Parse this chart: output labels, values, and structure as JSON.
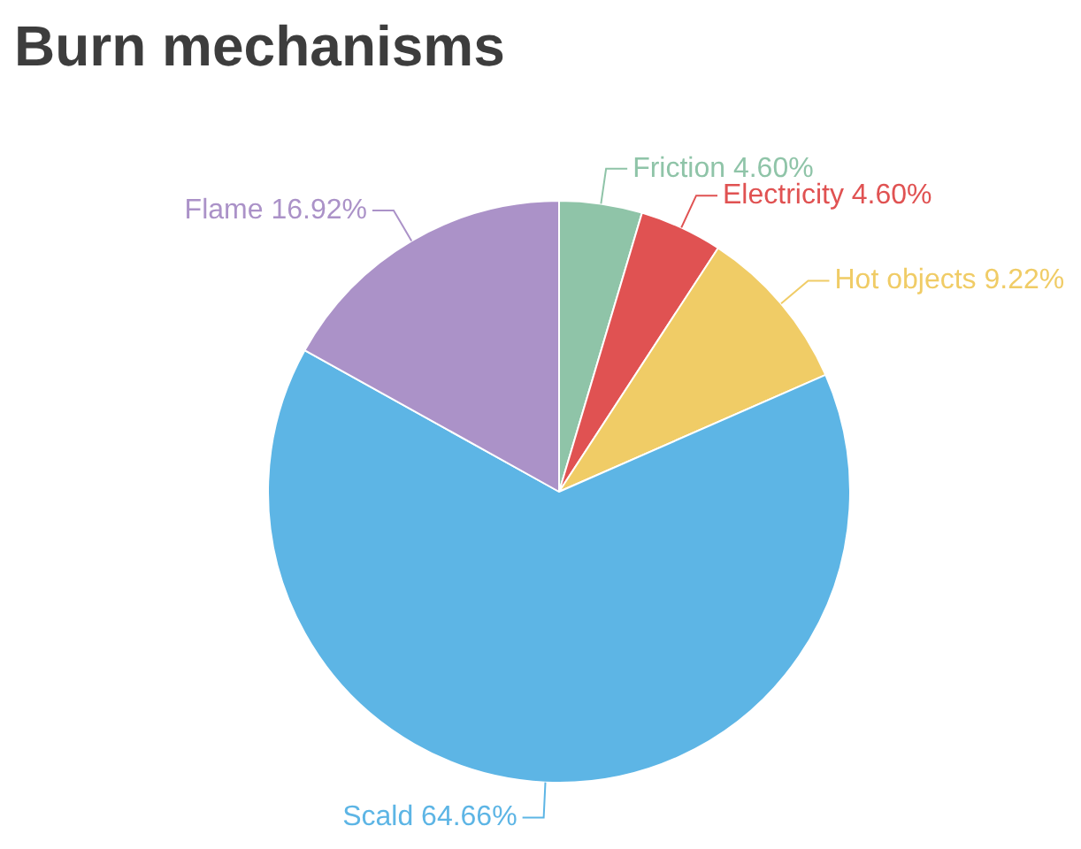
{
  "chart_data": {
    "type": "pie",
    "title": "Burn mechanisms",
    "categories": [
      "Friction",
      "Electricity",
      "Hot objects",
      "Scald",
      "Flame"
    ],
    "values": [
      4.6,
      4.6,
      9.22,
      64.66,
      16.92
    ],
    "value_labels": [
      "4.60%",
      "4.60%",
      "9.22%",
      "64.66%",
      "16.92%"
    ],
    "colors": [
      "#8fc4a8",
      "#e05252",
      "#f0cc66",
      "#5db5e5",
      "#ab92c8"
    ],
    "legend": false
  }
}
